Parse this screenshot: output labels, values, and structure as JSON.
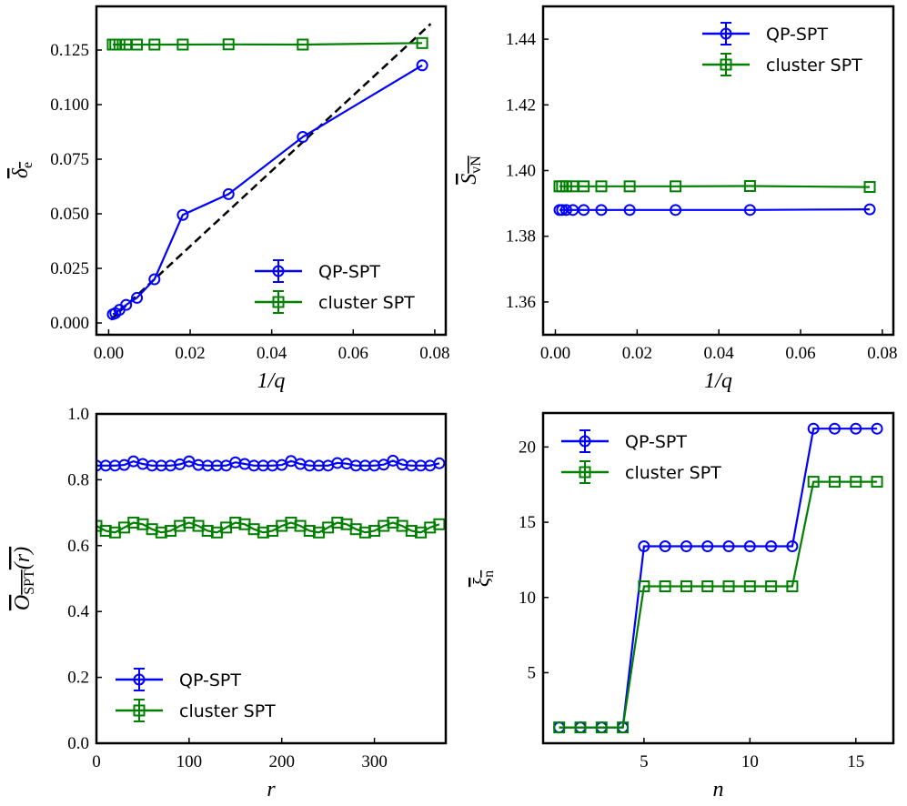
{
  "chart_data": [
    {
      "type": "line",
      "xlabel": "1/q",
      "ylabel": {
        "base": "δ",
        "sub": "e",
        "overline": true
      },
      "xlim": [
        -0.003,
        0.0827
      ],
      "ylim": [
        -0.0054,
        0.145
      ],
      "xticks": [
        0,
        0.02,
        0.04,
        0.06,
        0.08
      ],
      "xtick_labels": [
        "0.00",
        "0.02",
        "0.04",
        "0.06",
        "0.08"
      ],
      "yticks": [
        0,
        0.025,
        0.05,
        0.075,
        0.1,
        0.125
      ],
      "ytick_labels": [
        "0.000",
        "0.025",
        "0.050",
        "0.075",
        "0.100",
        "0.125"
      ],
      "grid": false,
      "legend": "lower-right",
      "series": [
        {
          "name": "QP-SPT",
          "color": "#0000ff",
          "marker": "circle",
          "x": [
            0.00101,
            0.00164,
            0.00265,
            0.00429,
            0.00694,
            0.01124,
            0.01818,
            0.02941,
            0.04762,
            0.07692
          ],
          "y": [
            0.004,
            0.0045,
            0.006,
            0.0083,
            0.0115,
            0.02,
            0.0495,
            0.059,
            0.0852,
            0.118
          ]
        },
        {
          "name": "cluster SPT",
          "color": "#008000",
          "marker": "square",
          "x": [
            0.00101,
            0.00164,
            0.00265,
            0.00429,
            0.00694,
            0.01124,
            0.01818,
            0.02941,
            0.04762,
            0.07692
          ],
          "y": [
            0.1275,
            0.1275,
            0.1275,
            0.1275,
            0.1275,
            0.1275,
            0.1275,
            0.1276,
            0.1275,
            0.1282
          ]
        }
      ],
      "reference_line": {
        "style": "dashed",
        "color": "#000000",
        "x": [
          0.0005,
          0.079
        ],
        "y": [
          0.0015,
          0.137
        ]
      }
    },
    {
      "type": "line",
      "xlabel": "1/q",
      "ylabel": {
        "base": "S",
        "sub": "vN",
        "overline": true
      },
      "xlim": [
        -0.003,
        0.0827
      ],
      "ylim": [
        1.35,
        1.45
      ],
      "xticks": [
        0,
        0.02,
        0.04,
        0.06,
        0.08
      ],
      "xtick_labels": [
        "0.00",
        "0.02",
        "0.04",
        "0.06",
        "0.08"
      ],
      "yticks": [
        1.36,
        1.38,
        1.4,
        1.42,
        1.44
      ],
      "ytick_labels": [
        "1.36",
        "1.38",
        "1.40",
        "1.42",
        "1.44"
      ],
      "grid": false,
      "legend": "upper-right",
      "series": [
        {
          "name": "QP-SPT",
          "color": "#0000ff",
          "marker": "circle",
          "x": [
            0.00101,
            0.00164,
            0.00265,
            0.00429,
            0.00694,
            0.01124,
            0.01818,
            0.02941,
            0.04762,
            0.07692
          ],
          "y": [
            1.388,
            1.388,
            1.388,
            1.388,
            1.388,
            1.388,
            1.388,
            1.388,
            1.388,
            1.3882
          ]
        },
        {
          "name": "cluster SPT",
          "color": "#008000",
          "marker": "square",
          "x": [
            0.00101,
            0.00164,
            0.00265,
            0.00429,
            0.00694,
            0.01124,
            0.01818,
            0.02941,
            0.04762,
            0.07692
          ],
          "y": [
            1.3952,
            1.3952,
            1.3952,
            1.3952,
            1.3952,
            1.3952,
            1.3952,
            1.3952,
            1.3953,
            1.395
          ]
        }
      ]
    },
    {
      "type": "line",
      "xlabel": "r",
      "ylabel": {
        "base": "O",
        "sub": "SPT",
        "suffix": "(r)",
        "overline": true
      },
      "xlim": [
        0,
        377
      ],
      "ylim": [
        0,
        1
      ],
      "xticks": [
        0,
        100,
        200,
        300
      ],
      "xtick_labels": [
        "0",
        "100",
        "200",
        "300"
      ],
      "yticks": [
        0,
        0.2,
        0.4,
        0.6,
        0.8,
        1.0
      ],
      "ytick_labels": [
        "0.0",
        "0.2",
        "0.4",
        "0.6",
        "0.8",
        "1.0"
      ],
      "grid": false,
      "legend": "lower-left",
      "series": [
        {
          "name": "QP-SPT",
          "color": "#0000ff",
          "marker": "circle",
          "x": [
            0,
            10,
            20,
            30,
            40,
            50,
            60,
            70,
            80,
            90,
            100,
            110,
            120,
            130,
            140,
            150,
            160,
            170,
            180,
            190,
            200,
            210,
            220,
            230,
            240,
            250,
            260,
            270,
            280,
            290,
            300,
            310,
            320,
            330,
            340,
            350,
            360,
            370
          ],
          "y": [
            0.843,
            0.843,
            0.843,
            0.845,
            0.856,
            0.848,
            0.843,
            0.843,
            0.843,
            0.847,
            0.856,
            0.845,
            0.843,
            0.843,
            0.843,
            0.853,
            0.848,
            0.843,
            0.843,
            0.843,
            0.845,
            0.857,
            0.848,
            0.843,
            0.843,
            0.843,
            0.851,
            0.849,
            0.843,
            0.843,
            0.843,
            0.846,
            0.858,
            0.846,
            0.843,
            0.843,
            0.843,
            0.85
          ]
        },
        {
          "name": "cluster SPT",
          "color": "#008000",
          "marker": "square",
          "x": [
            0,
            10,
            20,
            30,
            40,
            50,
            60,
            70,
            80,
            90,
            100,
            110,
            120,
            130,
            140,
            150,
            160,
            170,
            180,
            190,
            200,
            210,
            220,
            230,
            240,
            250,
            260,
            270,
            280,
            290,
            300,
            310,
            320,
            330,
            340,
            350,
            360,
            370
          ],
          "y": [
            0.66,
            0.645,
            0.64,
            0.655,
            0.67,
            0.665,
            0.65,
            0.64,
            0.645,
            0.66,
            0.67,
            0.66,
            0.645,
            0.64,
            0.655,
            0.67,
            0.665,
            0.65,
            0.64,
            0.645,
            0.66,
            0.67,
            0.66,
            0.645,
            0.64,
            0.655,
            0.67,
            0.665,
            0.65,
            0.64,
            0.645,
            0.66,
            0.67,
            0.66,
            0.645,
            0.64,
            0.655,
            0.665
          ]
        }
      ]
    },
    {
      "type": "line",
      "xlabel": "n",
      "ylabel": {
        "base": "ξ",
        "sub": "n",
        "overline": true
      },
      "xlim": [
        0.24,
        16.77
      ],
      "ylim": [
        0.31,
        22.26
      ],
      "xticks": [
        5,
        10,
        15
      ],
      "xtick_labels": [
        "5",
        "10",
        "15"
      ],
      "yticks": [
        5,
        10,
        15,
        20
      ],
      "ytick_labels": [
        "5",
        "10",
        "15",
        "20"
      ],
      "grid": false,
      "legend": "upper-left",
      "series": [
        {
          "name": "QP-SPT",
          "color": "#0000ff",
          "marker": "circle",
          "x": [
            1,
            2,
            3,
            4,
            5,
            6,
            7,
            8,
            9,
            10,
            11,
            12,
            13,
            14,
            15,
            16
          ],
          "y": [
            1.36,
            1.36,
            1.36,
            1.36,
            13.4,
            13.4,
            13.4,
            13.4,
            13.4,
            13.4,
            13.4,
            13.4,
            21.22,
            21.22,
            21.22,
            21.22
          ]
        },
        {
          "name": "cluster SPT",
          "color": "#008000",
          "marker": "square",
          "x": [
            1,
            2,
            3,
            4,
            5,
            6,
            7,
            8,
            9,
            10,
            11,
            12,
            13,
            14,
            15,
            16
          ],
          "y": [
            1.36,
            1.36,
            1.36,
            1.36,
            10.74,
            10.74,
            10.74,
            10.74,
            10.74,
            10.74,
            10.74,
            10.74,
            17.69,
            17.69,
            17.69,
            17.69
          ]
        }
      ]
    }
  ]
}
